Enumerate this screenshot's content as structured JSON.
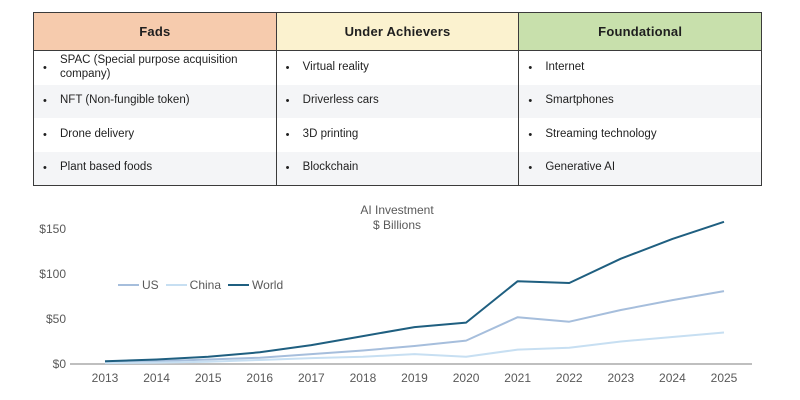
{
  "table": {
    "bullet": "•",
    "columns": [
      {
        "header": "Fads",
        "header_bg": "#F6CBAD",
        "items": [
          "SPAC (Special purpose acquisition company)",
          "NFT (Non-fungible token)",
          "Drone delivery",
          "Plant based foods"
        ]
      },
      {
        "header": "Under Achievers",
        "header_bg": "#FBF2CF",
        "items": [
          "Virtual reality",
          "Driverless cars",
          "3D printing",
          "Blockchain"
        ]
      },
      {
        "header": "Foundational",
        "header_bg": "#C8E0AC",
        "items": [
          "Internet",
          "Smartphones",
          "Streaming technology",
          "Generative AI"
        ]
      }
    ]
  },
  "chart_data": {
    "type": "line",
    "title": "AI Investment",
    "subtitle": "$ Billions",
    "x": [
      2013,
      2014,
      2015,
      2016,
      2017,
      2018,
      2019,
      2020,
      2021,
      2022,
      2023,
      2024,
      2025
    ],
    "series": [
      {
        "name": "US",
        "color": "#A6BEDC",
        "values": [
          2,
          3,
          5,
          7,
          11,
          15,
          20,
          26,
          52,
          47,
          60,
          71,
          81
        ]
      },
      {
        "name": "China",
        "color": "#C7DFF2",
        "values": [
          1,
          1.5,
          2.5,
          4.5,
          6.5,
          8,
          11,
          8,
          16,
          18,
          25,
          30,
          35
        ]
      },
      {
        "name": "World",
        "color": "#1F5F80",
        "values": [
          3,
          5,
          8,
          13,
          21,
          31,
          41,
          46,
          92,
          90,
          117,
          139,
          158
        ]
      }
    ],
    "y_ticks": [
      {
        "label": "$0",
        "value": 0
      },
      {
        "label": "$50",
        "value": 50
      },
      {
        "label": "$100",
        "value": 100
      },
      {
        "label": "$150",
        "value": 150
      }
    ],
    "ylim": [
      0,
      170
    ],
    "grid": false,
    "legend_position": "inside-upper-left",
    "axis_color": "#BFBFBF",
    "text_color": "#595959"
  }
}
